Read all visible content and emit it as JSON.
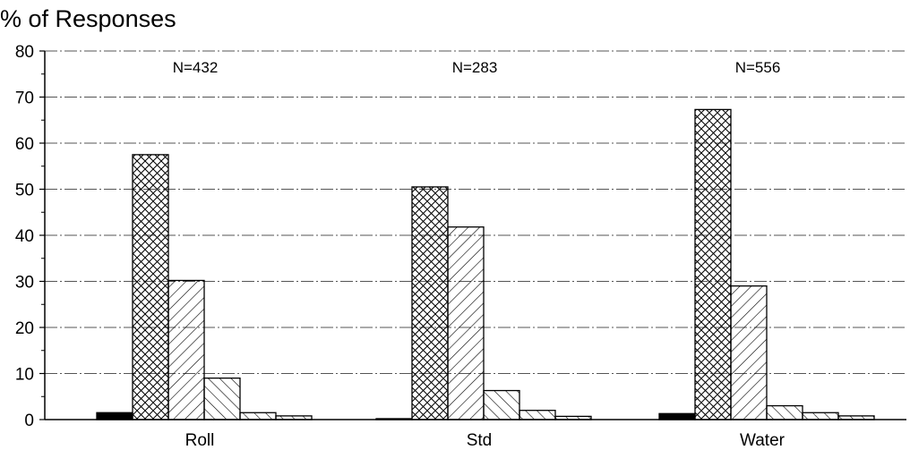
{
  "chart_data": {
    "type": "bar",
    "title": "",
    "ylabel": "% of Responses",
    "xlabel": "",
    "ylim": [
      0,
      80
    ],
    "yticks": [
      "0",
      "10",
      "20",
      "30",
      "40",
      "50",
      "60",
      "70",
      "80"
    ],
    "grid": true,
    "categories": [
      "Roll",
      "Std",
      "Water"
    ],
    "annotations": [
      "N=432",
      "N=283",
      "N=556"
    ],
    "series": [
      {
        "pattern": "solid-black",
        "values": [
          1.5,
          0.2,
          1.3
        ]
      },
      {
        "pattern": "crosshatch",
        "values": [
          57.5,
          50.5,
          67.3
        ]
      },
      {
        "pattern": "diagonal-forward",
        "values": [
          30.2,
          41.8,
          29.0
        ]
      },
      {
        "pattern": "diagonal-back",
        "values": [
          9.0,
          6.3,
          3.0
        ]
      },
      {
        "pattern": "diagonal-back",
        "values": [
          1.5,
          2.0,
          1.5
        ]
      },
      {
        "pattern": "diagonal-back",
        "values": [
          0.8,
          0.7,
          0.8
        ]
      }
    ]
  }
}
